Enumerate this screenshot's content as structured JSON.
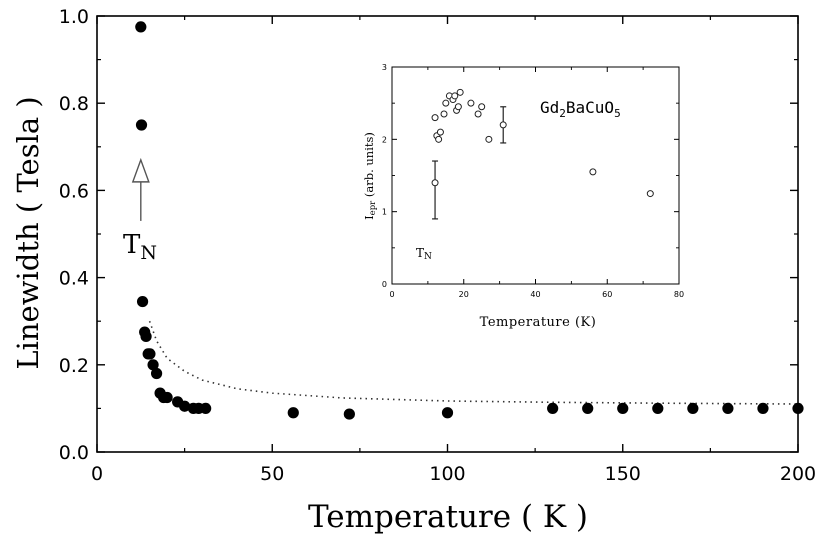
{
  "chart_data": [
    {
      "type": "scatter",
      "xlabel": "Temperature ( K )",
      "ylabel": "Linewidth ( Tesla )",
      "xlim": [
        0,
        200
      ],
      "ylim": [
        0.0,
        1.0
      ],
      "x_ticks": [
        0,
        50,
        100,
        150,
        200
      ],
      "x_tick_labels": [
        "0",
        "50",
        "100",
        "150",
        "200"
      ],
      "y_ticks": [
        0.0,
        0.2,
        0.4,
        0.6,
        0.8,
        1.0
      ],
      "y_tick_labels": [
        "0.0",
        "0.2",
        "0.4",
        "0.6",
        "0.8",
        "1.0"
      ],
      "grid": false,
      "annotations": [
        {
          "text": "T",
          "subscript": "N",
          "x": 12.5,
          "arrow_from_y": 0.53,
          "arrow_to_y": 0.67
        }
      ],
      "series": [
        {
          "marker": "filled-circle",
          "x": [
            12.5,
            12.7,
            13.0,
            13.6,
            14.0,
            14.6,
            15.1,
            16.0,
            17.0,
            18.0,
            19.0,
            20.0,
            23.0,
            25.0,
            27.5,
            29.0,
            31.0,
            56.0,
            72.0,
            100.0,
            130.0,
            140.0,
            150.0,
            160.0,
            170.0,
            180.0,
            190.0,
            200.0
          ],
          "y": [
            0.975,
            0.75,
            0.345,
            0.275,
            0.265,
            0.225,
            0.225,
            0.2,
            0.18,
            0.135,
            0.125,
            0.125,
            0.115,
            0.105,
            0.1,
            0.1,
            0.1,
            0.09,
            0.087,
            0.09,
            0.1,
            0.1,
            0.1,
            0.1,
            0.1,
            0.1,
            0.1,
            0.1
          ]
        },
        {
          "style": "dotted-line",
          "x": [
            15,
            17,
            20,
            25,
            30,
            40,
            50,
            70,
            100,
            130,
            160,
            200
          ],
          "y": [
            0.3,
            0.255,
            0.215,
            0.185,
            0.165,
            0.145,
            0.135,
            0.124,
            0.117,
            0.114,
            0.112,
            0.11
          ]
        }
      ]
    },
    {
      "type": "scatter",
      "title": "Gd2BaCuO5",
      "title_parts": [
        "Gd",
        "2",
        "BaCuO",
        "5"
      ],
      "xlabel": "Temperature (K)",
      "ylabel": "I",
      "ylabel_subscript": "epr",
      "ylabel_suffix": " (arb. units)",
      "xlim": [
        0,
        80
      ],
      "ylim": [
        0,
        3
      ],
      "x_ticks": [
        0,
        20,
        40,
        60,
        80
      ],
      "x_tick_labels": [
        "0",
        "20",
        "40",
        "60",
        "80"
      ],
      "y_ticks": [
        0,
        1,
        2,
        3
      ],
      "y_tick_labels": [
        "0",
        "1",
        "2",
        "3"
      ],
      "grid": false,
      "annotations": [
        {
          "text": "T",
          "subscript": "N",
          "x": 9,
          "y": 0.45
        }
      ],
      "series": [
        {
          "marker": "open-circle",
          "x": [
            12.0,
            12.5,
            13.0,
            13.5,
            14.5,
            15.0,
            16.0,
            17.0,
            17.5,
            18.0,
            18.5,
            19.0,
            22.0,
            24.0,
            25.0,
            27.0,
            56.0,
            72.0
          ],
          "y": [
            2.3,
            2.05,
            2.0,
            2.1,
            2.35,
            2.5,
            2.6,
            2.55,
            2.6,
            2.4,
            2.45,
            2.65,
            2.5,
            2.35,
            2.45,
            2.0,
            1.55,
            1.25
          ]
        }
      ],
      "error_bars": [
        {
          "x": 12.0,
          "y": 1.4,
          "low": 0.9,
          "high": 1.7
        },
        {
          "x": 31.0,
          "y": 2.2,
          "low": 1.95,
          "high": 2.45
        }
      ]
    }
  ]
}
